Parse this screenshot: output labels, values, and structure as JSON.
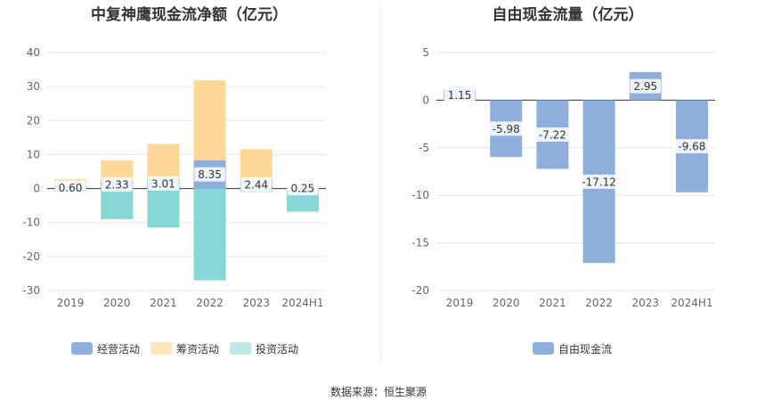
{
  "chart_data": [
    {
      "type": "bar",
      "title": "中复神鹰现金流净额（亿元）",
      "categories": [
        "2019",
        "2020",
        "2021",
        "2022",
        "2023",
        "2024H1"
      ],
      "ylim": [
        -30,
        40
      ],
      "yticks": [
        40,
        30,
        20,
        10,
        0,
        -10,
        -20,
        -30
      ],
      "grid": true,
      "legend_position": "bottom",
      "series": [
        {
          "name": "经营活动",
          "color": "#8eaedc",
          "values": [
            0.6,
            2.33,
            3.01,
            8.35,
            2.44,
            0.25
          ],
          "labels": [
            "0.60",
            "2.33",
            "3.01",
            "8.35",
            "2.44",
            "0.25"
          ]
        },
        {
          "name": "筹资活动",
          "color": "#fdd899",
          "values": [
            2.1,
            5.9,
            10.1,
            23.5,
            9.1,
            0.0
          ]
        },
        {
          "name": "投资活动",
          "color": "#87d7d7",
          "values": [
            -1.0,
            -9.0,
            -11.5,
            -27.0,
            -1.0,
            -6.8
          ]
        }
      ]
    },
    {
      "type": "bar",
      "title": "自由现金流量（亿元）",
      "categories": [
        "2019",
        "2020",
        "2021",
        "2022",
        "2023",
        "2024H1"
      ],
      "ylim": [
        -20,
        5
      ],
      "yticks": [
        5,
        0,
        -5,
        -10,
        -15,
        -20
      ],
      "grid": true,
      "legend_position": "bottom",
      "series": [
        {
          "name": "自由现金流",
          "color": "#8eaedc",
          "values": [
            1.15,
            -5.98,
            -7.22,
            -17.12,
            2.95,
            -9.68
          ],
          "labels": [
            "1.15",
            "-5.98",
            "-7.22",
            "-17.12",
            "2.95",
            "-9.68"
          ]
        }
      ]
    }
  ],
  "source": "数据来源：恒生聚源"
}
